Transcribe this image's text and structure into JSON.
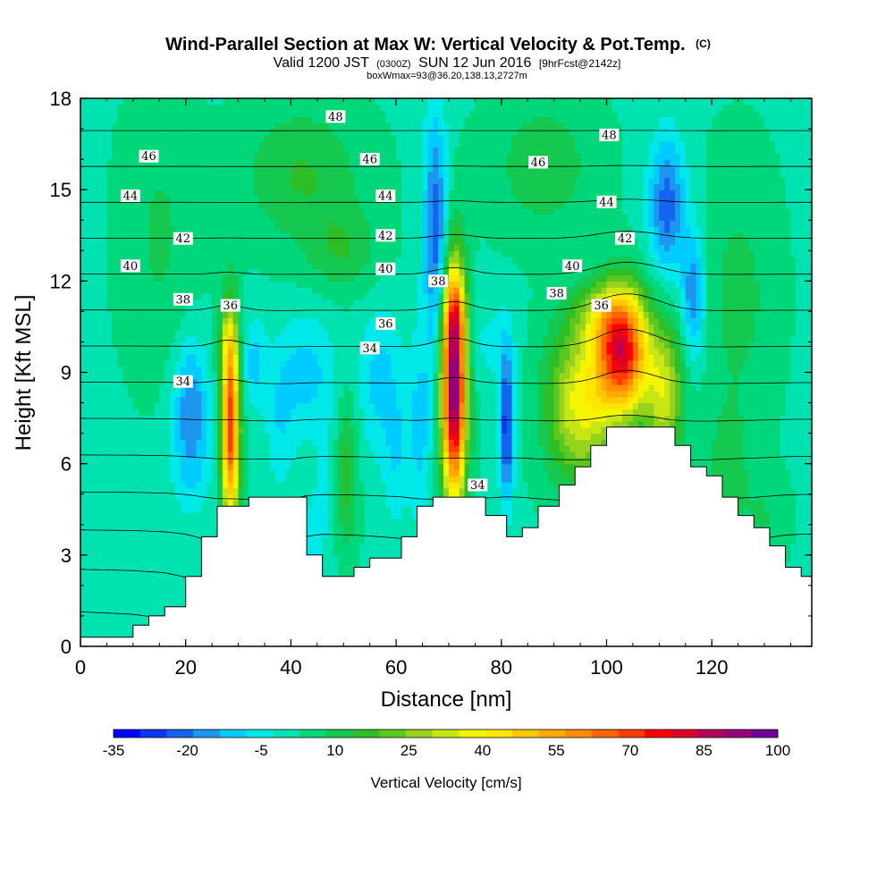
{
  "chart_data": {
    "type": "heatmap",
    "title": "Wind-Parallel Section at Max W: Vertical Velocity & Pot.Temp.",
    "title_suffix": "(C)",
    "subtitle_valid": "Valid 1200 JST",
    "subtitle_z": "(0300Z)",
    "subtitle_date": "SUN 12 Jun 2016",
    "subtitle_fcst": "[9hrFcst@2142z]",
    "subtitle_box": "boxWmax=93@36.20,138.13,2727m",
    "xlabel": "Distance [nm]",
    "ylabel": "Height [Kft MSL]",
    "xlim": [
      0,
      139
    ],
    "ylim": [
      0,
      18
    ],
    "x_ticks": [
      "0",
      "20",
      "40",
      "60",
      "80",
      "100",
      "120"
    ],
    "y_ticks": [
      "0",
      "3",
      "6",
      "9",
      "12",
      "15",
      "18"
    ],
    "colorbar": {
      "label": "Vertical Velocity [cm/s]",
      "tick_labels": [
        "-35",
        "-20",
        "-5",
        "10",
        "25",
        "40",
        "55",
        "70",
        "85",
        "100"
      ],
      "colors": [
        "#0000ff",
        "#0a37f5",
        "#1464f0",
        "#1e96f0",
        "#00ccff",
        "#00e8e8",
        "#00e3b0",
        "#00d67a",
        "#14c850",
        "#2dbe28",
        "#5ac81e",
        "#96d21e",
        "#c8e614",
        "#f5f500",
        "#ffe600",
        "#ffc800",
        "#ffaa00",
        "#ff8c00",
        "#ff6400",
        "#ff3c00",
        "#ff0000",
        "#dc0028",
        "#b4005a",
        "#960078",
        "#6e0096"
      ]
    },
    "theta_contour_labels": [
      {
        "text": "48",
        "x": 48.5,
        "y": 17.4
      },
      {
        "text": "48",
        "x": 100.5,
        "y": 16.8
      },
      {
        "text": "46",
        "x": 13,
        "y": 16.1
      },
      {
        "text": "46",
        "x": 55,
        "y": 16.0
      },
      {
        "text": "46",
        "x": 87,
        "y": 15.9
      },
      {
        "text": "44",
        "x": 9.5,
        "y": 14.8
      },
      {
        "text": "44",
        "x": 58,
        "y": 14.8
      },
      {
        "text": "44",
        "x": 100,
        "y": 14.6
      },
      {
        "text": "42",
        "x": 19.5,
        "y": 13.4
      },
      {
        "text": "42",
        "x": 58,
        "y": 13.5
      },
      {
        "text": "42",
        "x": 103.5,
        "y": 13.4
      },
      {
        "text": "40",
        "x": 9.5,
        "y": 12.5
      },
      {
        "text": "40",
        "x": 58,
        "y": 12.4
      },
      {
        "text": "40",
        "x": 93.5,
        "y": 12.5
      },
      {
        "text": "38",
        "x": 19.5,
        "y": 11.4
      },
      {
        "text": "38",
        "x": 68,
        "y": 12.0
      },
      {
        "text": "38",
        "x": 90.5,
        "y": 11.6
      },
      {
        "text": "36",
        "x": 28.5,
        "y": 11.2
      },
      {
        "text": "36",
        "x": 58,
        "y": 10.6
      },
      {
        "text": "36",
        "x": 99,
        "y": 11.2
      },
      {
        "text": "34",
        "x": 19.5,
        "y": 8.7
      },
      {
        "text": "34",
        "x": 55,
        "y": 9.8
      },
      {
        "text": "34",
        "x": 75.5,
        "y": 5.3
      }
    ],
    "terrain": [
      {
        "x": 0,
        "y": 0.3
      },
      {
        "x": 10,
        "y": 0.7
      },
      {
        "x": 13,
        "y": 1.0
      },
      {
        "x": 16,
        "y": 1.3
      },
      {
        "x": 20,
        "y": 2.3
      },
      {
        "x": 23,
        "y": 3.6
      },
      {
        "x": 26,
        "y": 4.6
      },
      {
        "x": 29,
        "y": 4.6
      },
      {
        "x": 32,
        "y": 4.9
      },
      {
        "x": 40,
        "y": 4.9
      },
      {
        "x": 43,
        "y": 3.0
      },
      {
        "x": 46,
        "y": 2.3
      },
      {
        "x": 52,
        "y": 2.6
      },
      {
        "x": 55,
        "y": 2.9
      },
      {
        "x": 61,
        "y": 3.6
      },
      {
        "x": 64,
        "y": 4.6
      },
      {
        "x": 67,
        "y": 4.9
      },
      {
        "x": 74,
        "y": 4.9
      },
      {
        "x": 77,
        "y": 4.3
      },
      {
        "x": 81,
        "y": 3.6
      },
      {
        "x": 84,
        "y": 3.9
      },
      {
        "x": 87,
        "y": 4.6
      },
      {
        "x": 91,
        "y": 5.3
      },
      {
        "x": 94,
        "y": 5.9
      },
      {
        "x": 97,
        "y": 6.6
      },
      {
        "x": 100,
        "y": 7.2
      },
      {
        "x": 110,
        "y": 7.2
      },
      {
        "x": 113,
        "y": 6.6
      },
      {
        "x": 116,
        "y": 5.9
      },
      {
        "x": 119,
        "y": 5.6
      },
      {
        "x": 122,
        "y": 4.9
      },
      {
        "x": 125,
        "y": 4.3
      },
      {
        "x": 128,
        "y": 3.9
      },
      {
        "x": 131,
        "y": 3.3
      },
      {
        "x": 134,
        "y": 2.6
      },
      {
        "x": 137,
        "y": 2.3
      },
      {
        "x": 139,
        "y": 2.3
      }
    ],
    "w_features": [
      {
        "x": 28.5,
        "y": 7.3,
        "sx": 1.2,
        "sy": 2.3,
        "w": 70
      },
      {
        "x": 28,
        "y": 10.1,
        "sx": 1.1,
        "sy": 0.8,
        "w": 12
      },
      {
        "x": 71,
        "y": 8.5,
        "sx": 1.6,
        "sy": 2.6,
        "w": 95
      },
      {
        "x": 71,
        "y": 11.0,
        "sx": 1.5,
        "sy": 0.9,
        "w": 20
      },
      {
        "x": 103,
        "y": 9.7,
        "sx": 3.4,
        "sy": 1.4,
        "w": 75
      },
      {
        "x": 95,
        "y": 8.0,
        "sx": 4.5,
        "sy": 1.8,
        "w": 35
      },
      {
        "x": 111,
        "y": 8.3,
        "sx": 2.5,
        "sy": 1.6,
        "w": 30
      },
      {
        "x": 99,
        "y": 10.9,
        "sx": 4.0,
        "sy": 0.7,
        "w": 15
      },
      {
        "x": 81,
        "y": 7.3,
        "sx": 1.0,
        "sy": 1.8,
        "w": -30
      },
      {
        "x": 64.5,
        "y": 7.2,
        "sx": 1.6,
        "sy": 2.2,
        "w": -12
      },
      {
        "x": 67.5,
        "y": 13.6,
        "sx": 1.6,
        "sy": 2.8,
        "w": -25
      },
      {
        "x": 111.5,
        "y": 14.5,
        "sx": 2.5,
        "sy": 1.6,
        "w": -24
      },
      {
        "x": 116.5,
        "y": 11.5,
        "sx": 1.6,
        "sy": 1.5,
        "w": -20
      },
      {
        "x": 21,
        "y": 8.2,
        "sx": 2.2,
        "sy": 1.4,
        "w": -18
      },
      {
        "x": 21,
        "y": 6.0,
        "sx": 2.8,
        "sy": 1.3,
        "w": -10
      },
      {
        "x": 33,
        "y": 9.3,
        "sx": 1.6,
        "sy": 1.0,
        "w": -12
      },
      {
        "x": 43,
        "y": 9.0,
        "sx": 4.0,
        "sy": 1.4,
        "w": -12
      },
      {
        "x": 57,
        "y": 8.7,
        "sx": 3.0,
        "sy": 1.8,
        "w": -12
      },
      {
        "x": 50.5,
        "y": 5.7,
        "sx": 1.5,
        "sy": 1.8,
        "w": 15
      },
      {
        "x": 47,
        "y": 5.6,
        "sx": 1.8,
        "sy": 1.4,
        "w": -6
      },
      {
        "x": 38,
        "y": 7.2,
        "sx": 2.0,
        "sy": 1.6,
        "w": -8
      },
      {
        "x": 60,
        "y": 6.0,
        "sx": 1.6,
        "sy": 1.6,
        "w": -8
      },
      {
        "x": 42,
        "y": 15.5,
        "sx": 8.0,
        "sy": 1.6,
        "w": 12
      },
      {
        "x": 50,
        "y": 13.0,
        "sx": 5.0,
        "sy": 1.0,
        "w": 10
      },
      {
        "x": 88,
        "y": 15.8,
        "sx": 7.0,
        "sy": 1.6,
        "w": 10
      },
      {
        "x": 15,
        "y": 13.5,
        "sx": 5.0,
        "sy": 3.0,
        "w": 7
      },
      {
        "x": 125,
        "y": 11.5,
        "sx": 5.0,
        "sy": 3.0,
        "w": 8
      },
      {
        "x": 78,
        "y": 10.0,
        "sx": 3.0,
        "sy": 1.0,
        "w": -6
      },
      {
        "x": 44,
        "y": 3.5,
        "sx": 2.0,
        "sy": 1.2,
        "w": -6
      },
      {
        "x": 123,
        "y": 5.8,
        "sx": 3.0,
        "sy": 1.5,
        "w": 8
      },
      {
        "x": 130,
        "y": 4.2,
        "sx": 3.0,
        "sy": 1.0,
        "w": 6
      }
    ],
    "w_background": 2,
    "theta_levels": [
      30,
      31,
      32,
      33,
      34,
      35,
      36,
      37,
      38,
      39,
      40,
      41,
      42,
      43,
      44,
      45,
      46,
      47,
      48
    ]
  }
}
